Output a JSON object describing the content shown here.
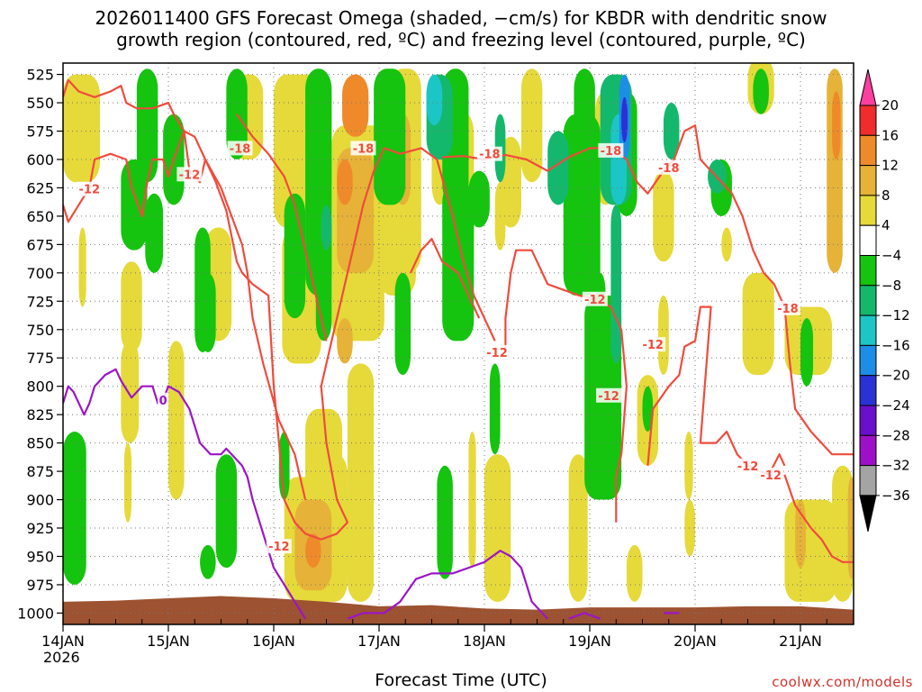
{
  "chart_data": {
    "type": "heatmap",
    "title": "2026011400 GFS Forecast Omega (shaded, −cm/s) for KBDR with dendritic snow",
    "subtitle": "growth region (contoured, red, ºC) and freezing level (contoured, purple, ºC)",
    "xlabel": "Forecast Time (UTC)",
    "ylabel": "",
    "x_ticks": [
      "14JAN",
      "15JAN",
      "16JAN",
      "17JAN",
      "18JAN",
      "19JAN",
      "20JAN",
      "21JAN"
    ],
    "x_year": "2026",
    "x_range_days": [
      0,
      7.5
    ],
    "y_ticks": [
      525,
      550,
      575,
      600,
      625,
      650,
      675,
      700,
      725,
      750,
      775,
      800,
      825,
      850,
      875,
      900,
      925,
      950,
      975,
      1000
    ],
    "y_range": [
      515,
      1010
    ],
    "grid": true,
    "colorbar": {
      "labels": [
        "20",
        "16",
        "12",
        "8",
        "4",
        "−4",
        "−8",
        "−12",
        "−16",
        "−20",
        "−24",
        "−28",
        "−32",
        "−36"
      ],
      "colors": [
        "#ff3f9f",
        "#ef2d2d",
        "#ef8a2a",
        "#e6b237",
        "#e6d93a",
        "#ffffff",
        "#14c40e",
        "#14b86c",
        "#1cc6c6",
        "#1c8ee8",
        "#2a32d6",
        "#6a0fcc",
        "#9e10c8",
        "#a4a4a4",
        "#000000"
      ]
    },
    "contours": {
      "dgz": {
        "color": "#f04b3c",
        "labels": [
          {
            "text": "-12",
            "day": 0.25,
            "p": 626
          },
          {
            "text": "-12",
            "day": 1.2,
            "p": 613
          },
          {
            "text": "-18",
            "day": 1.68,
            "p": 590
          },
          {
            "text": "-18",
            "day": 2.85,
            "p": 590
          },
          {
            "text": "-18",
            "day": 4.05,
            "p": 595
          },
          {
            "text": "-18",
            "day": 5.2,
            "p": 592
          },
          {
            "text": "-18",
            "day": 5.75,
            "p": 607
          },
          {
            "text": "-18",
            "day": 6.88,
            "p": 731
          },
          {
            "text": "-12",
            "day": 2.05,
            "p": 941
          },
          {
            "text": "-12",
            "day": 4.12,
            "p": 770
          },
          {
            "text": "-12",
            "day": 5.05,
            "p": 723
          },
          {
            "text": "-12",
            "day": 5.6,
            "p": 763
          },
          {
            "text": "-12",
            "day": 5.18,
            "p": 808
          },
          {
            "text": "-12",
            "day": 6.5,
            "p": 870
          },
          {
            "text": "-12",
            "day": 6.72,
            "p": 878
          }
        ]
      },
      "freezing": {
        "color": "#9b16c6",
        "labels": [
          {
            "text": "0",
            "day": 0.95,
            "p": 812
          }
        ]
      }
    },
    "terrain_color": "#9d5231"
  },
  "credit": "coolwx.com/models"
}
